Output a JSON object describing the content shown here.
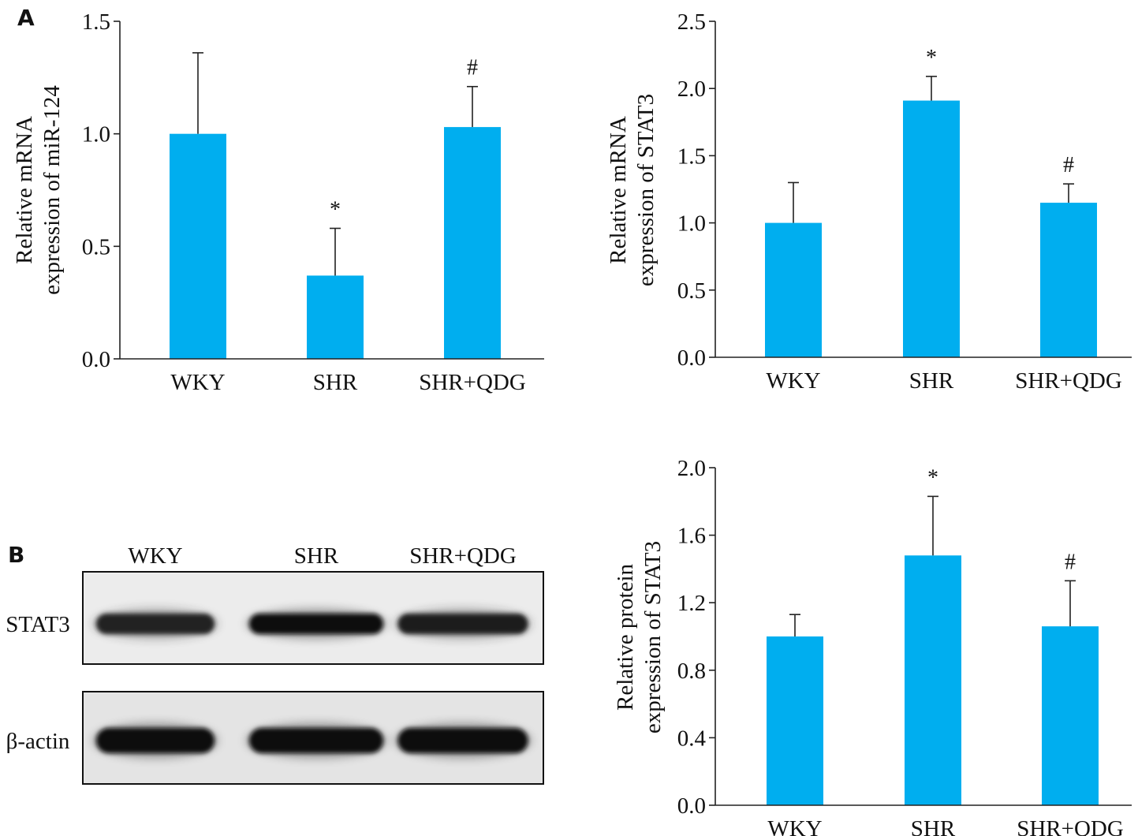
{
  "panels": {
    "a_label": "A",
    "b_label": "B"
  },
  "chart_data": [
    {
      "type": "bar",
      "categories": [
        "WKY",
        "SHR",
        "SHR+QDG"
      ],
      "values": [
        1.0,
        0.37,
        1.03
      ],
      "errors": [
        0.36,
        0.21,
        0.18
      ],
      "annotations": [
        "",
        "*",
        "#"
      ],
      "ylabel": [
        "Relative mRNA",
        "expression of miR-124"
      ],
      "ylim": [
        0,
        1.5
      ],
      "yticks": [
        0.0,
        0.5,
        1.0,
        1.5
      ],
      "ytick_labels": [
        "0.0",
        "0.5",
        "1.0",
        "1.5"
      ],
      "bar_color": "#00aeef"
    },
    {
      "type": "bar",
      "categories": [
        "WKY",
        "SHR",
        "SHR+QDG"
      ],
      "values": [
        1.0,
        1.91,
        1.15
      ],
      "errors": [
        0.3,
        0.18,
        0.14
      ],
      "annotations": [
        "",
        "*",
        "#"
      ],
      "ylabel": [
        "Relative mRNA",
        "expression of STAT3"
      ],
      "ylim": [
        0,
        2.5
      ],
      "yticks": [
        0.0,
        0.5,
        1.0,
        1.5,
        2.0,
        2.5
      ],
      "ytick_labels": [
        "0.0",
        "0.5",
        "1.0",
        "1.5",
        "2.0",
        "2.5"
      ],
      "bar_color": "#00aeef"
    },
    {
      "type": "bar",
      "categories": [
        "WKY",
        "SHR",
        "SHR+QDG"
      ],
      "values": [
        1.0,
        1.48,
        1.06
      ],
      "errors": [
        0.13,
        0.35,
        0.27
      ],
      "annotations": [
        "",
        "*",
        "#"
      ],
      "ylabel": [
        "Relative protein",
        "expression of STAT3"
      ],
      "ylim": [
        0,
        2.0
      ],
      "yticks": [
        0.0,
        0.4,
        0.8,
        1.2,
        1.6,
        2.0
      ],
      "ytick_labels": [
        "0.0",
        "0.4",
        "0.8",
        "1.2",
        "1.6",
        "2.0"
      ],
      "bar_color": "#00aeef"
    }
  ],
  "blot": {
    "lanes": [
      "WKY",
      "SHR",
      "SHR+QDG"
    ],
    "rows": [
      {
        "label": "STAT3",
        "intensity": [
          0.72,
          0.95,
          0.8
        ]
      },
      {
        "label": "β-actin",
        "intensity": [
          1.0,
          1.0,
          1.0
        ]
      }
    ]
  }
}
